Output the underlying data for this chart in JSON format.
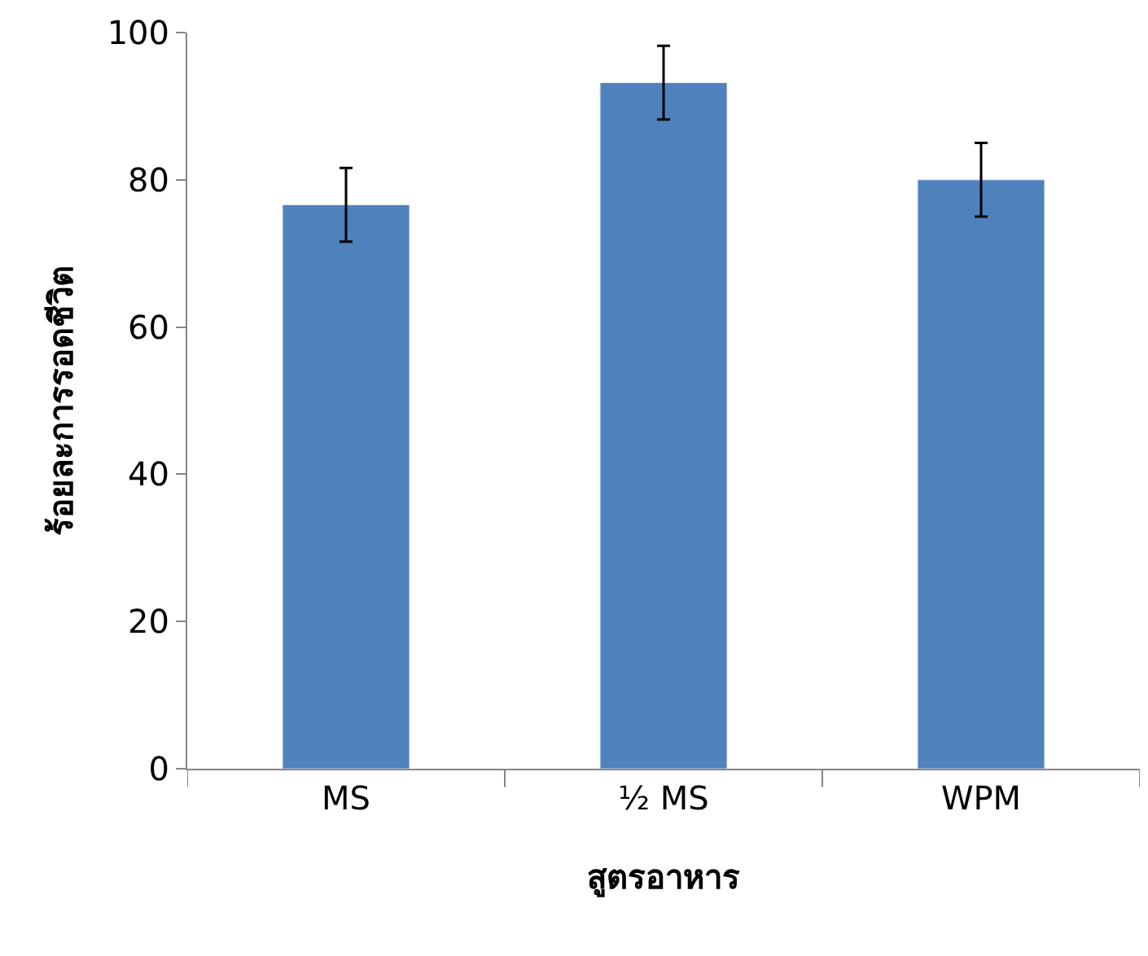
{
  "chart_data": {
    "type": "bar",
    "xlabel": "สูตรอาหาร",
    "ylabel": "ร้อยละการรอดชีวิต",
    "categories": [
      "MS",
      "½ MS",
      "WPM"
    ],
    "values": [
      76.6,
      93.2,
      80
    ],
    "errors": [
      5,
      5,
      5
    ],
    "color": "#4f81bd",
    "ylim": [
      0,
      100
    ],
    "yticks": [
      0,
      20,
      40,
      60,
      80,
      100
    ]
  }
}
